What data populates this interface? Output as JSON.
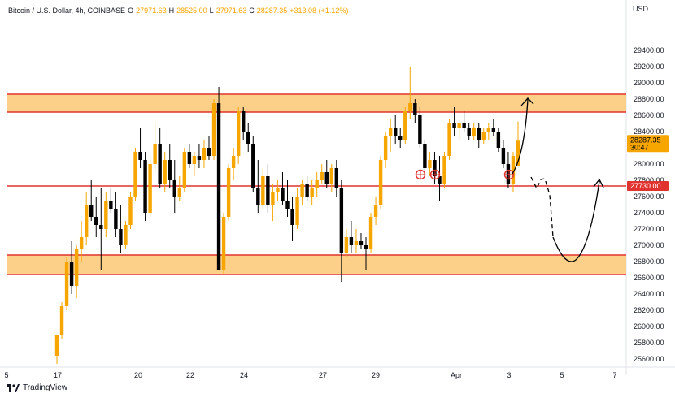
{
  "header": {
    "symbol": "Bitcoin / U.S. Dollar, 4h, COINBASE",
    "o_key": "O",
    "o_val": "27971.63",
    "h_key": "H",
    "h_val": "28525.00",
    "l_key": "L",
    "l_val": "27971.63",
    "c_key": "C",
    "c_val": "28287.35",
    "chg": "+313.08 (+1.12%)"
  },
  "footer": {
    "brand": "TradingView"
  },
  "colors": {
    "bull": "#f7a600",
    "bear": "#000000",
    "zone": "#fdd08a",
    "zone_line": "#e0322f",
    "price_tag": "#f7a600",
    "level_tag": "#e0322f"
  },
  "chart_data": {
    "type": "candlestick",
    "currency_label": "USD",
    "ylim": [
      25500,
      29800
    ],
    "y_ticks": [
      25600,
      25800,
      26000,
      26200,
      26400,
      26600,
      26800,
      27000,
      27200,
      27400,
      27600,
      27800,
      28000,
      28200,
      28400,
      28600,
      28800,
      29000,
      29200,
      29400
    ],
    "x_ticks": [
      "5",
      "17",
      "20",
      "22",
      "24",
      "27",
      "29",
      "Apr",
      "3",
      "5",
      "7"
    ],
    "zones": [
      {
        "low": 28640,
        "high": 28860
      },
      {
        "low": 26640,
        "high": 26880
      }
    ],
    "support_line": 27730,
    "current_price": "28287.35",
    "countdown": "30:47",
    "level_label": "27730.00",
    "candles": [
      [
        25640,
        25900,
        25540,
        25900
      ],
      [
        25900,
        26300,
        25850,
        26250
      ],
      [
        26250,
        26850,
        26200,
        26800
      ],
      [
        26800,
        27050,
        26400,
        26500
      ],
      [
        26500,
        27000,
        26350,
        26950
      ],
      [
        26950,
        27300,
        26800,
        27100
      ],
      [
        27100,
        27650,
        27000,
        27500
      ],
      [
        27500,
        27800,
        27300,
        27350
      ],
      [
        27350,
        27600,
        27100,
        27250
      ],
      [
        27250,
        27700,
        26700,
        27200
      ],
      [
        27200,
        27650,
        27100,
        27550
      ],
      [
        27550,
        27700,
        27400,
        27450
      ],
      [
        27450,
        27650,
        27100,
        27200
      ],
      [
        27200,
        27500,
        26900,
        27000
      ],
      [
        27000,
        27300,
        26950,
        27250
      ],
      [
        27250,
        27650,
        27200,
        27600
      ],
      [
        27600,
        28200,
        27550,
        28150
      ],
      [
        28150,
        28450,
        27950,
        28050
      ],
      [
        28050,
        28150,
        27300,
        27400
      ],
      [
        27400,
        28100,
        27350,
        28000
      ],
      [
        28000,
        28500,
        27900,
        28250
      ],
      [
        28250,
        28450,
        27700,
        27750
      ],
      [
        27750,
        28150,
        27650,
        28050
      ],
      [
        28050,
        28250,
        27700,
        27800
      ],
      [
        27800,
        28050,
        27400,
        27600
      ],
      [
        27600,
        27850,
        27550,
        27700
      ],
      [
        27700,
        28200,
        27650,
        28150
      ],
      [
        28150,
        28250,
        27950,
        28000
      ],
      [
        28000,
        28150,
        27850,
        28100
      ],
      [
        28100,
        28250,
        27950,
        28050
      ],
      [
        28050,
        28300,
        27950,
        28200
      ],
      [
        28200,
        28350,
        28050,
        28100
      ],
      [
        28100,
        28800,
        28050,
        28750
      ],
      [
        28750,
        28950,
        26700,
        26700
      ],
      [
        26700,
        27400,
        26650,
        27350
      ],
      [
        27350,
        28000,
        27300,
        27950
      ],
      [
        27950,
        28200,
        27800,
        28100
      ],
      [
        28100,
        28700,
        28000,
        28650
      ],
      [
        28650,
        28700,
        28300,
        28400
      ],
      [
        28400,
        28500,
        28150,
        28250
      ],
      [
        28250,
        28350,
        27650,
        27700
      ],
      [
        27700,
        28050,
        27400,
        27500
      ],
      [
        27500,
        27950,
        27450,
        27850
      ],
      [
        27850,
        28000,
        27400,
        27500
      ],
      [
        27500,
        27750,
        27300,
        27650
      ],
      [
        27650,
        27800,
        27550,
        27700
      ],
      [
        27700,
        27900,
        27500,
        27550
      ],
      [
        27550,
        27800,
        27350,
        27450
      ],
      [
        27450,
        27600,
        27050,
        27250
      ],
      [
        27250,
        27700,
        27200,
        27600
      ],
      [
        27600,
        27800,
        27500,
        27750
      ],
      [
        27750,
        27850,
        27550,
        27600
      ],
      [
        27600,
        27800,
        27500,
        27700
      ],
      [
        27700,
        27900,
        27600,
        27800
      ],
      [
        27800,
        28000,
        27750,
        27900
      ],
      [
        27900,
        28050,
        27700,
        27750
      ],
      [
        27750,
        28000,
        27650,
        27950
      ],
      [
        27950,
        28050,
        27600,
        27700
      ],
      [
        27700,
        27800,
        26550,
        26900
      ],
      [
        26900,
        27200,
        26850,
        27100
      ],
      [
        27100,
        27300,
        26900,
        27000
      ],
      [
        27000,
        27200,
        26900,
        27050
      ],
      [
        27050,
        27150,
        26950,
        27000
      ],
      [
        27000,
        27100,
        26700,
        26950
      ],
      [
        26950,
        27400,
        26900,
        27350
      ],
      [
        27350,
        27600,
        27250,
        27500
      ],
      [
        27500,
        28100,
        27450,
        28050
      ],
      [
        28050,
        28400,
        27950,
        28350
      ],
      [
        28350,
        28550,
        28150,
        28450
      ],
      [
        28450,
        28600,
        28250,
        28350
      ],
      [
        28350,
        28450,
        28200,
        28300
      ],
      [
        28300,
        28700,
        28250,
        28650
      ],
      [
        28650,
        29200,
        28550,
        28750
      ],
      [
        28750,
        28800,
        28500,
        28600
      ],
      [
        28600,
        28700,
        28200,
        28250
      ],
      [
        28250,
        28300,
        27900,
        27950
      ],
      [
        27950,
        28150,
        27850,
        28050
      ],
      [
        28050,
        28150,
        27750,
        27850
      ],
      [
        27850,
        28100,
        27550,
        27750
      ],
      [
        27750,
        28150,
        27700,
        28100
      ],
      [
        28100,
        28550,
        28050,
        28500
      ],
      [
        28500,
        28700,
        28350,
        28450
      ],
      [
        28450,
        28550,
        28300,
        28500
      ],
      [
        28500,
        28650,
        28400,
        28450
      ],
      [
        28450,
        28500,
        28300,
        28350
      ],
      [
        28350,
        28500,
        28300,
        28450
      ],
      [
        28450,
        28500,
        28200,
        28300
      ],
      [
        28300,
        28450,
        28250,
        28400
      ],
      [
        28400,
        28500,
        28300,
        28450
      ],
      [
        28450,
        28550,
        28350,
        28400
      ],
      [
        28400,
        28450,
        28150,
        28200
      ],
      [
        28200,
        28300,
        27950,
        28000
      ],
      [
        28000,
        28150,
        27700,
        27750
      ],
      [
        27750,
        28150,
        27650,
        28100
      ],
      [
        27971.63,
        28525,
        27971.63,
        28287.35
      ]
    ]
  }
}
